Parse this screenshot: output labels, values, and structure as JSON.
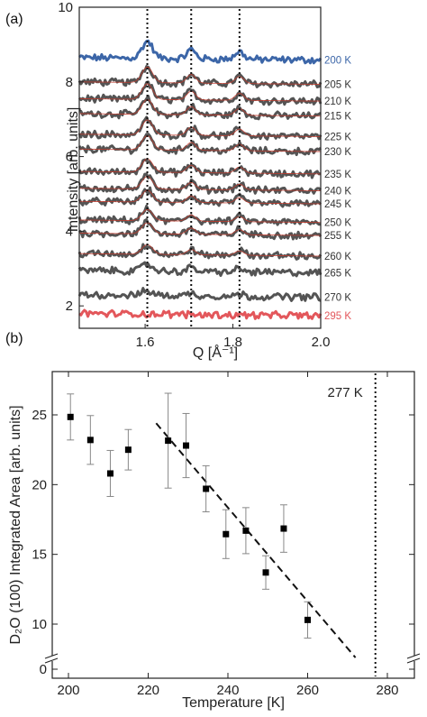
{
  "chart_data": [
    {
      "panel_label": "(a)",
      "type": "line",
      "xlabel": "Q [Å⁻¹]",
      "ylabel": "Intensity [arb. units]",
      "xlim": [
        1.45,
        2.0
      ],
      "ylim": [
        1.4,
        10
      ],
      "x_ticks": [
        "1.6",
        "1.8",
        "2.0"
      ],
      "x_tick_values": [
        1.6,
        1.8,
        2.0
      ],
      "y_ticks": [
        "2",
        "4",
        "6",
        "8",
        "10"
      ],
      "y_tick_values": [
        2,
        4,
        6,
        8,
        10
      ],
      "reference_lines_x": [
        1.605,
        1.705,
        1.815
      ],
      "peaks": [
        {
          "x": 1.605,
          "width": 0.012,
          "scale": 1.0
        },
        {
          "x": 1.705,
          "width": 0.01,
          "scale": 0.55
        },
        {
          "x": 1.815,
          "width": 0.01,
          "scale": 0.45
        }
      ],
      "series": [
        {
          "name": "200 K",
          "baseline": 8.65,
          "peak_height": 0.45,
          "color": "#3c66a8",
          "label_color": "#3c66a8",
          "fit": false
        },
        {
          "name": "205 K",
          "baseline": 8.0,
          "peak_height": 0.42,
          "color": "#545454",
          "label_color": "#333333",
          "fit": true
        },
        {
          "name": "210 K",
          "baseline": 7.55,
          "peak_height": 0.42,
          "color": "#545454",
          "label_color": "#333333",
          "fit": true
        },
        {
          "name": "215 K",
          "baseline": 7.15,
          "peak_height": 0.4,
          "color": "#545454",
          "label_color": "#333333",
          "fit": true
        },
        {
          "name": "225 K",
          "baseline": 6.6,
          "peak_height": 0.4,
          "color": "#545454",
          "label_color": "#333333",
          "fit": true
        },
        {
          "name": "230 K",
          "baseline": 6.2,
          "peak_height": 0.38,
          "color": "#545454",
          "label_color": "#333333",
          "fit": true
        },
        {
          "name": "235 K",
          "baseline": 5.6,
          "peak_height": 0.36,
          "color": "#545454",
          "label_color": "#333333",
          "fit": true
        },
        {
          "name": "240 K",
          "baseline": 5.15,
          "peak_height": 0.34,
          "color": "#545454",
          "label_color": "#333333",
          "fit": true
        },
        {
          "name": "245 K",
          "baseline": 4.8,
          "peak_height": 0.32,
          "color": "#545454",
          "label_color": "#333333",
          "fit": true
        },
        {
          "name": "250 K",
          "baseline": 4.3,
          "peak_height": 0.3,
          "color": "#545454",
          "label_color": "#333333",
          "fit": true
        },
        {
          "name": "255 K",
          "baseline": 3.95,
          "peak_height": 0.3,
          "color": "#545454",
          "label_color": "#333333",
          "fit": true
        },
        {
          "name": "260 K",
          "baseline": 3.4,
          "peak_height": 0.26,
          "color": "#545454",
          "label_color": "#333333",
          "fit": true
        },
        {
          "name": "265 K",
          "baseline": 2.95,
          "peak_height": 0.18,
          "color": "#545454",
          "label_color": "#333333",
          "fit": false
        },
        {
          "name": "270 K",
          "baseline": 2.3,
          "peak_height": 0.12,
          "color": "#545454",
          "label_color": "#333333",
          "fit": false
        },
        {
          "name": "295 K",
          "baseline": 1.8,
          "peak_height": 0.0,
          "color": "#e3575b",
          "label_color": "#e3575b",
          "fit": false
        }
      ]
    },
    {
      "panel_label": "(b)",
      "type": "scatter",
      "xlabel": "Temperature [K]",
      "ylabel": "D₂O (100) Integrated Area [arb. units]",
      "xlim": [
        195,
        285
      ],
      "ylim": [
        5,
        28
      ],
      "x_ticks": [
        "200",
        "220",
        "240",
        "260",
        "280"
      ],
      "x_tick_values": [
        200,
        220,
        240,
        260,
        280
      ],
      "y_ticks": [
        "0",
        "10",
        "15",
        "20",
        "25"
      ],
      "y_tick_values": [
        5,
        10,
        15,
        20,
        25
      ],
      "axis_break": true,
      "vertical_line": {
        "x": 277,
        "label": "277 K"
      },
      "trend_line": {
        "x": [
          222,
          272
        ],
        "y": [
          24.4,
          7.6
        ]
      },
      "points": [
        {
          "x": 200.5,
          "y": 24.85,
          "err": 1.65
        },
        {
          "x": 205.5,
          "y": 23.2,
          "err": 1.75
        },
        {
          "x": 210.5,
          "y": 20.8,
          "err": 1.65
        },
        {
          "x": 215,
          "y": 22.5,
          "err": 1.45
        },
        {
          "x": 225,
          "y": 23.15,
          "err": 3.4
        },
        {
          "x": 229.5,
          "y": 22.8,
          "err": 2.3
        },
        {
          "x": 234.5,
          "y": 19.7,
          "err": 1.65
        },
        {
          "x": 239.5,
          "y": 16.45,
          "err": 1.75
        },
        {
          "x": 244.5,
          "y": 16.7,
          "err": 1.65
        },
        {
          "x": 249.5,
          "y": 13.7,
          "err": 1.2
        },
        {
          "x": 254,
          "y": 16.85,
          "err": 1.7
        },
        {
          "x": 260,
          "y": 10.3,
          "err": 1.3
        }
      ]
    }
  ]
}
